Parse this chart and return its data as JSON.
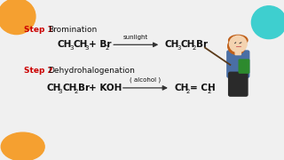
{
  "bg_color": "#f0f0f0",
  "step1_label": "Step 1",
  "step1_text": "Bromination",
  "step2_label": "Step 2",
  "step2_text": "Dehydrohalogenation",
  "step_color": "#cc0000",
  "text_color": "#111111",
  "arrow_color": "#333333",
  "condition1": "sunlight",
  "condition2": "( alcohol )",
  "deco_orange": "#f5a030",
  "deco_teal": "#3ecfcf",
  "teacher_skin": "#f4d3b0",
  "teacher_hair": "#c0601a",
  "teacher_body": "#4a6fa5",
  "teacher_skirt": "#2a2a2a",
  "teacher_book": "#2d8a2d"
}
